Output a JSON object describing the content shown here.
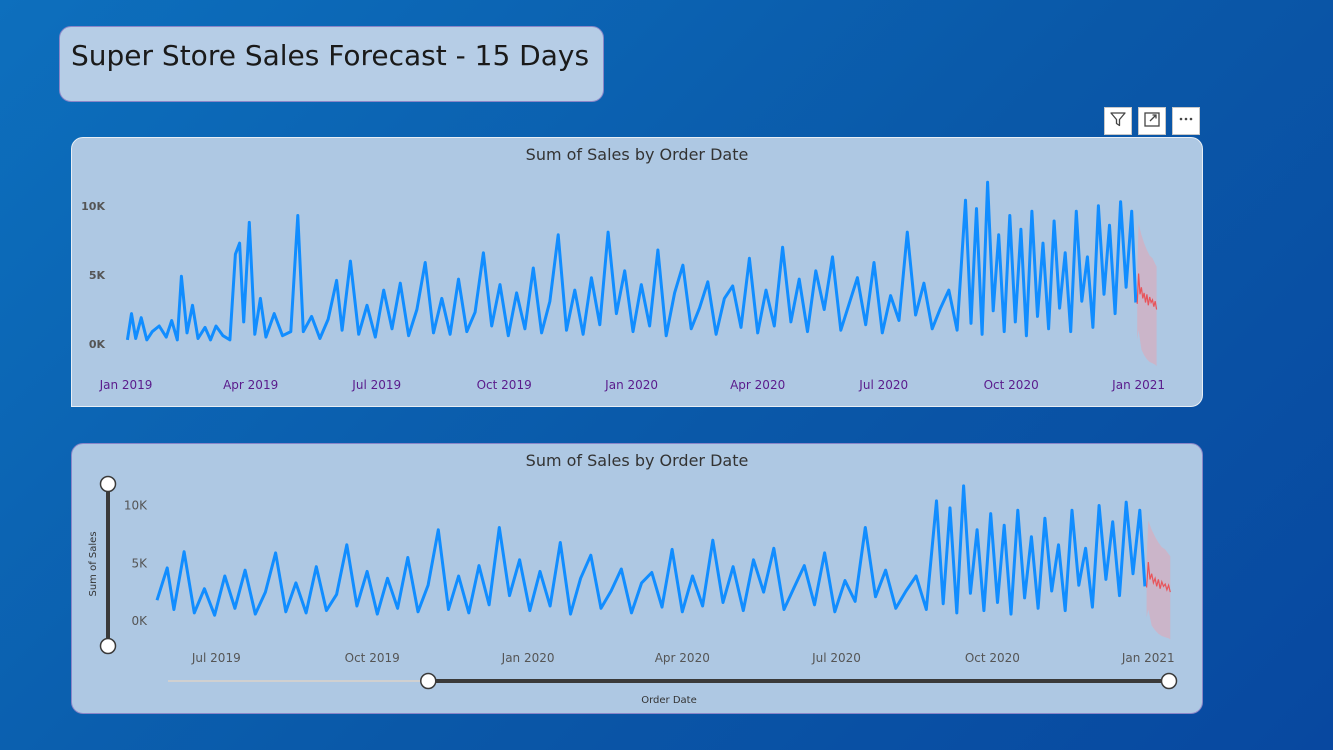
{
  "page_title": "Super Store Sales Forecast - 15 Days",
  "toolbar": {
    "filter_icon": "filter-icon",
    "focus_icon": "focus-mode-icon",
    "more_icon": "more-options-icon"
  },
  "colors": {
    "actual_line": "#118dff",
    "forecast_line": "#e8545a",
    "forecast_band": "#e3a5b5",
    "card_bg": "#aec8e3"
  },
  "chart_data": [
    {
      "type": "line",
      "title": "Sum of Sales by Order Date",
      "xlabel": "",
      "ylabel": "",
      "x_range": [
        "2019-01-01",
        "2021-01-15"
      ],
      "y_ticks": [
        "0K",
        "5K",
        "10K"
      ],
      "x_ticks": [
        "Jan 2019",
        "Apr 2019",
        "Jul 2019",
        "Oct 2019",
        "Jan 2020",
        "Apr 2020",
        "Jul 2020",
        "Oct 2020",
        "Jan 2021"
      ],
      "ylim": [
        0,
        11000
      ],
      "series": [
        {
          "points": [
            [
              "2019-01-02",
              300
            ],
            [
              "2019-01-05",
              2200
            ],
            [
              "2019-01-08",
              400
            ],
            [
              "2019-01-12",
              1900
            ],
            [
              "2019-01-16",
              300
            ],
            [
              "2019-01-20",
              900
            ],
            [
              "2019-01-25",
              1300
            ],
            [
              "2019-01-30",
              500
            ],
            [
              "2019-02-03",
              1700
            ],
            [
              "2019-02-07",
              300
            ],
            [
              "2019-02-10",
              4900
            ],
            [
              "2019-02-14",
              800
            ],
            [
              "2019-02-18",
              2800
            ],
            [
              "2019-02-22",
              400
            ],
            [
              "2019-02-27",
              1200
            ],
            [
              "2019-03-03",
              300
            ],
            [
              "2019-03-07",
              1300
            ],
            [
              "2019-03-12",
              600
            ],
            [
              "2019-03-17",
              300
            ],
            [
              "2019-03-21",
              6500
            ],
            [
              "2019-03-24",
              7300
            ],
            [
              "2019-03-27",
              1600
            ],
            [
              "2019-03-31",
              8800
            ],
            [
              "2019-04-04",
              700
            ],
            [
              "2019-04-08",
              3300
            ],
            [
              "2019-04-12",
              500
            ],
            [
              "2019-04-18",
              2200
            ],
            [
              "2019-04-24",
              600
            ],
            [
              "2019-04-30",
              900
            ],
            [
              "2019-05-05",
              9300
            ],
            [
              "2019-05-09",
              900
            ],
            [
              "2019-05-15",
              2000
            ],
            [
              "2019-05-21",
              400
            ],
            [
              "2019-05-27",
              1800
            ],
            [
              "2019-06-02",
              4600
            ],
            [
              "2019-06-06",
              1000
            ],
            [
              "2019-06-12",
              6000
            ],
            [
              "2019-06-18",
              700
            ],
            [
              "2019-06-24",
              2800
            ],
            [
              "2019-06-30",
              500
            ],
            [
              "2019-07-06",
              3900
            ],
            [
              "2019-07-12",
              1100
            ],
            [
              "2019-07-18",
              4400
            ],
            [
              "2019-07-24",
              600
            ],
            [
              "2019-07-30",
              2500
            ],
            [
              "2019-08-05",
              5900
            ],
            [
              "2019-08-11",
              800
            ],
            [
              "2019-08-17",
              3300
            ],
            [
              "2019-08-23",
              700
            ],
            [
              "2019-08-29",
              4700
            ],
            [
              "2019-09-04",
              900
            ],
            [
              "2019-09-10",
              2300
            ],
            [
              "2019-09-16",
              6600
            ],
            [
              "2019-09-22",
              1300
            ],
            [
              "2019-09-28",
              4300
            ],
            [
              "2019-10-04",
              600
            ],
            [
              "2019-10-10",
              3700
            ],
            [
              "2019-10-16",
              1100
            ],
            [
              "2019-10-22",
              5500
            ],
            [
              "2019-10-28",
              800
            ],
            [
              "2019-11-03",
              3100
            ],
            [
              "2019-11-09",
              7900
            ],
            [
              "2019-11-15",
              1000
            ],
            [
              "2019-11-21",
              3900
            ],
            [
              "2019-11-27",
              700
            ],
            [
              "2019-12-03",
              4800
            ],
            [
              "2019-12-09",
              1400
            ],
            [
              "2019-12-15",
              8100
            ],
            [
              "2019-12-21",
              2200
            ],
            [
              "2019-12-27",
              5300
            ],
            [
              "2020-01-02",
              900
            ],
            [
              "2020-01-08",
              4300
            ],
            [
              "2020-01-14",
              1300
            ],
            [
              "2020-01-20",
              6800
            ],
            [
              "2020-01-26",
              600
            ],
            [
              "2020-02-01",
              3700
            ],
            [
              "2020-02-07",
              5700
            ],
            [
              "2020-02-13",
              1100
            ],
            [
              "2020-02-19",
              2600
            ],
            [
              "2020-02-25",
              4500
            ],
            [
              "2020-03-02",
              700
            ],
            [
              "2020-03-08",
              3300
            ],
            [
              "2020-03-14",
              4200
            ],
            [
              "2020-03-20",
              1200
            ],
            [
              "2020-03-26",
              6200
            ],
            [
              "2020-04-01",
              800
            ],
            [
              "2020-04-07",
              3900
            ],
            [
              "2020-04-13",
              1300
            ],
            [
              "2020-04-19",
              7000
            ],
            [
              "2020-04-25",
              1600
            ],
            [
              "2020-05-01",
              4700
            ],
            [
              "2020-05-07",
              900
            ],
            [
              "2020-05-13",
              5300
            ],
            [
              "2020-05-19",
              2500
            ],
            [
              "2020-05-25",
              6300
            ],
            [
              "2020-05-31",
              1000
            ],
            [
              "2020-06-06",
              2900
            ],
            [
              "2020-06-12",
              4800
            ],
            [
              "2020-06-18",
              1400
            ],
            [
              "2020-06-24",
              5900
            ],
            [
              "2020-06-30",
              800
            ],
            [
              "2020-07-06",
              3500
            ],
            [
              "2020-07-12",
              1700
            ],
            [
              "2020-07-18",
              8100
            ],
            [
              "2020-07-24",
              2100
            ],
            [
              "2020-07-30",
              4400
            ],
            [
              "2020-08-05",
              1100
            ],
            [
              "2020-08-11",
              2600
            ],
            [
              "2020-08-17",
              3900
            ],
            [
              "2020-08-23",
              1000
            ],
            [
              "2020-08-29",
              10400
            ],
            [
              "2020-09-02",
              1500
            ],
            [
              "2020-09-06",
              9800
            ],
            [
              "2020-09-10",
              700
            ],
            [
              "2020-09-14",
              11700
            ],
            [
              "2020-09-18",
              2400
            ],
            [
              "2020-09-22",
              7900
            ],
            [
              "2020-09-26",
              900
            ],
            [
              "2020-09-30",
              9300
            ],
            [
              "2020-10-04",
              1600
            ],
            [
              "2020-10-08",
              8300
            ],
            [
              "2020-10-12",
              600
            ],
            [
              "2020-10-16",
              9600
            ],
            [
              "2020-10-20",
              2000
            ],
            [
              "2020-10-24",
              7300
            ],
            [
              "2020-10-28",
              1100
            ],
            [
              "2020-11-01",
              8900
            ],
            [
              "2020-11-05",
              2600
            ],
            [
              "2020-11-09",
              6600
            ],
            [
              "2020-11-13",
              900
            ],
            [
              "2020-11-17",
              9600
            ],
            [
              "2020-11-21",
              3100
            ],
            [
              "2020-11-25",
              6300
            ],
            [
              "2020-11-29",
              1200
            ],
            [
              "2020-12-03",
              10000
            ],
            [
              "2020-12-07",
              3600
            ],
            [
              "2020-12-11",
              8600
            ],
            [
              "2020-12-15",
              2200
            ],
            [
              "2020-12-19",
              10300
            ],
            [
              "2020-12-23",
              4100
            ],
            [
              "2020-12-27",
              9600
            ],
            [
              "2020-12-30",
              3000
            ]
          ]
        }
      ],
      "forecast": {
        "points": [
          [
            "2020-12-31",
            2900
          ],
          [
            "2021-01-01",
            5100
          ],
          [
            "2021-01-02",
            3600
          ],
          [
            "2021-01-03",
            4100
          ],
          [
            "2021-01-04",
            3300
          ],
          [
            "2021-01-05",
            3700
          ],
          [
            "2021-01-06",
            3000
          ],
          [
            "2021-01-07",
            3600
          ],
          [
            "2021-01-08",
            2800
          ],
          [
            "2021-01-09",
            3400
          ],
          [
            "2021-01-10",
            3000
          ],
          [
            "2021-01-11",
            3200
          ],
          [
            "2021-01-12",
            2700
          ],
          [
            "2021-01-13",
            3100
          ],
          [
            "2021-01-14",
            2500
          ]
        ],
        "upper": [
          [
            "2020-12-31",
            5400
          ],
          [
            "2021-01-01",
            8700
          ],
          [
            "2021-01-03",
            7900
          ],
          [
            "2021-01-05",
            7300
          ],
          [
            "2021-01-07",
            6800
          ],
          [
            "2021-01-09",
            6400
          ],
          [
            "2021-01-11",
            6200
          ],
          [
            "2021-01-13",
            5800
          ],
          [
            "2021-01-14",
            5600
          ]
        ],
        "lower": [
          [
            "2020-12-31",
            300
          ],
          [
            "2021-01-01",
            1000
          ],
          [
            "2021-01-03",
            -400
          ],
          [
            "2021-01-05",
            -800
          ],
          [
            "2021-01-07",
            -1100
          ],
          [
            "2021-01-09",
            -1300
          ],
          [
            "2021-01-11",
            -1400
          ],
          [
            "2021-01-13",
            -1500
          ],
          [
            "2021-01-14",
            -1600
          ]
        ]
      }
    },
    {
      "type": "line",
      "title": "Sum of Sales by Order Date",
      "xlabel": "Order Date",
      "ylabel": "Sum of Sales",
      "x_range": [
        "2019-05-27",
        "2021-01-15"
      ],
      "y_ticks": [
        "0K",
        "5K",
        "10K"
      ],
      "x_ticks": [
        "Jul 2019",
        "Oct 2019",
        "Jan 2020",
        "Apr 2020",
        "Jul 2020",
        "Oct 2020",
        "Jan 2021"
      ],
      "ylim": [
        0,
        11000
      ],
      "series_ref": 0,
      "forecast_ref": 0
    }
  ],
  "slicer": {
    "x_range_fraction": [
      0.26,
      1.0
    ],
    "y_range_fraction": [
      0.0,
      1.0
    ]
  }
}
